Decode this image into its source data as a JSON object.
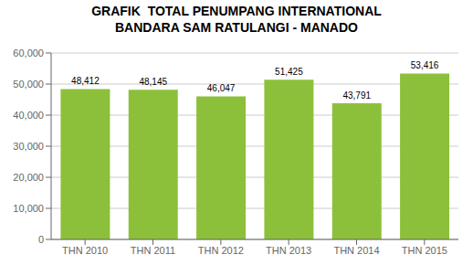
{
  "chart_data": {
    "type": "bar",
    "title": "GRAFIK  TOTAL PENUMPANG INTERNATIONAL\nBANDARA SAM RATULANGI - MANADO",
    "categories": [
      "THN 2010",
      "THN 2011",
      "THN 2012",
      "THN 2013",
      "THN 2014",
      "THN 2015"
    ],
    "values": [
      48412,
      48145,
      46047,
      51425,
      43791,
      53416
    ],
    "value_labels": [
      "48,412",
      "48,145",
      "46,047",
      "51,425",
      "43,791",
      "53,416"
    ],
    "color": "#8dc03a",
    "ylim": [
      0,
      60000
    ],
    "yticks": [
      0,
      {
        "value": 10000,
        "label": "10,000"
      },
      {
        "value": 20000,
        "label": "20,000"
      },
      {
        "value": 30000,
        "label": "30,000"
      },
      {
        "value": 40000,
        "label": "40,000"
      },
      {
        "value": 50000,
        "label": "50,000"
      },
      {
        "value": 60000,
        "label": "60,000"
      }
    ],
    "grid": true,
    "data_labels": true
  }
}
